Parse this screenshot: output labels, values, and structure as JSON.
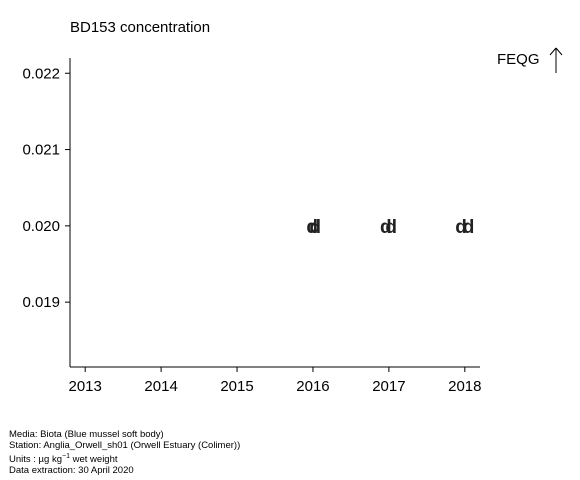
{
  "chart_data": {
    "type": "scatter",
    "title": "BD153 concentration",
    "xlabel": "",
    "ylabel": "",
    "xlim": [
      2012.8,
      2018.2
    ],
    "ylim": [
      0.01815,
      0.0222
    ],
    "x_ticks": [
      "2013",
      "2014",
      "2015",
      "2016",
      "2017",
      "2018"
    ],
    "y_ticks": [
      "0.022",
      "0.021",
      "0.020",
      "0.019"
    ],
    "y_tick_values": [
      0.022,
      0.021,
      0.02,
      0.019
    ],
    "reference_label": "FEQG",
    "grid": false,
    "legend": "none",
    "point_marker": "d",
    "points": [
      {
        "x": 2015.99,
        "y": 0.02,
        "label": "d"
      },
      {
        "x": 2016.03,
        "y": 0.02,
        "label": "d"
      },
      {
        "x": 2016.96,
        "y": 0.02,
        "label": "d"
      },
      {
        "x": 2017.03,
        "y": 0.02,
        "label": "d"
      },
      {
        "x": 2017.95,
        "y": 0.02,
        "label": "d"
      },
      {
        "x": 2018.05,
        "y": 0.02,
        "label": "d"
      }
    ]
  },
  "footer": {
    "media": "Media: Biota (Blue mussel soft body)",
    "station": "Station: Anglia_Orwell_sh01 (Orwell Estuary (Colimer))",
    "units_prefix": "Units : µg kg",
    "units_sup": "−1",
    "units_suffix": " wet weight",
    "extraction": "Data extraction: 30 April 2020"
  }
}
